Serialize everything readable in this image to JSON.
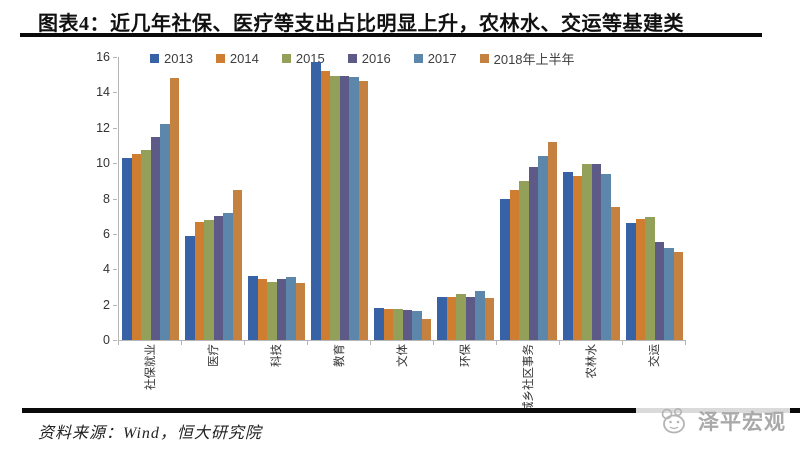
{
  "title": "图表4：近几年社保、医疗等支出占比明显上升，农林水、交运等基建类",
  "footer": {
    "source": "资料来源：Wind，恒大研究院"
  },
  "watermark": {
    "text": "泽平宏观"
  },
  "chart_data": {
    "type": "bar",
    "title": "",
    "xlabel": "",
    "ylabel": "",
    "categories": [
      "社保就业",
      "医疗",
      "科技",
      "教育",
      "文体",
      "环保",
      "城乡社区事务",
      "农林水",
      "交运"
    ],
    "series": [
      {
        "name": "2013",
        "color": "#3763A6",
        "values": [
          10.3,
          5.9,
          3.6,
          15.7,
          1.8,
          2.45,
          8.0,
          9.5,
          6.6
        ]
      },
      {
        "name": "2014",
        "color": "#CE7D31",
        "values": [
          10.5,
          6.7,
          3.45,
          15.2,
          1.75,
          2.45,
          8.5,
          9.3,
          6.85
        ]
      },
      {
        "name": "2015",
        "color": "#93A05A",
        "values": [
          10.75,
          6.8,
          3.3,
          14.9,
          1.75,
          2.6,
          9.0,
          9.95,
          6.95
        ]
      },
      {
        "name": "2016",
        "color": "#5D5A88",
        "values": [
          11.5,
          7.0,
          3.45,
          14.9,
          1.7,
          2.45,
          9.8,
          9.95,
          5.55
        ]
      },
      {
        "name": "2017",
        "color": "#5C87AB",
        "values": [
          12.2,
          7.2,
          3.55,
          14.85,
          1.65,
          2.75,
          10.4,
          9.4,
          5.2
        ]
      },
      {
        "name": "2018年上半年",
        "color": "#C5813F",
        "values": [
          14.8,
          8.5,
          3.25,
          14.65,
          1.2,
          2.4,
          11.2,
          7.5,
          4.95
        ]
      }
    ],
    "ylim": [
      0,
      16
    ],
    "yticks": [
      0,
      2,
      4,
      6,
      8,
      10,
      12,
      14,
      16
    ],
    "grid": false,
    "legend_position": "top"
  }
}
